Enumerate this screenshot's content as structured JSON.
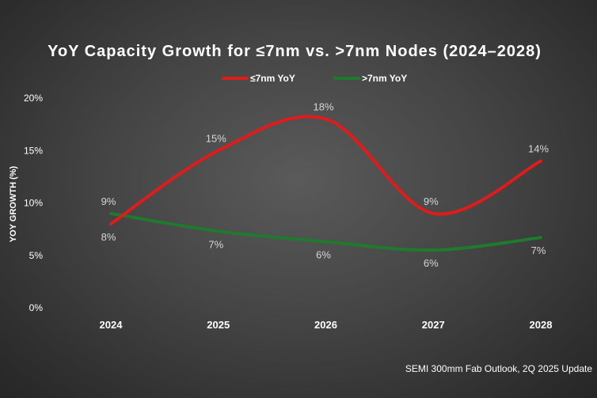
{
  "chart_data": {
    "type": "line",
    "title": "YoY Capacity Growth for ≤7nm vs. >7nm Nodes (2024–2028)",
    "ylabel": "YOY GROWTH (%)",
    "xlabel": "",
    "categories": [
      "2024",
      "2025",
      "2026",
      "2027",
      "2028"
    ],
    "ylim": [
      0,
      20
    ],
    "yticks": [
      0,
      5,
      10,
      15,
      20
    ],
    "ytick_labels": [
      "0%",
      "5%",
      "10%",
      "15%",
      "20%"
    ],
    "grid": false,
    "legend_position": "top-center",
    "smooth": true,
    "series": [
      {
        "name": "≤7nm YoY",
        "color": "#e01b1b",
        "values": [
          8,
          15,
          18,
          9,
          14
        ],
        "labels": [
          "8%",
          "15%",
          "18%",
          "9%",
          "14%"
        ],
        "label_position": [
          "below",
          "above",
          "above",
          "above",
          "above"
        ]
      },
      {
        "name": ">7nm YoY",
        "color": "#1f7a2e",
        "values": [
          9,
          7.3,
          6.3,
          5.5,
          6.7
        ],
        "labels": [
          "9%",
          "7%",
          "6%",
          "6%",
          "7%"
        ],
        "label_position": [
          "above",
          "below",
          "below",
          "below",
          "below"
        ]
      }
    ],
    "source_note": "SEMI 300mm Fab Outlook, 2Q 2025 Update"
  }
}
